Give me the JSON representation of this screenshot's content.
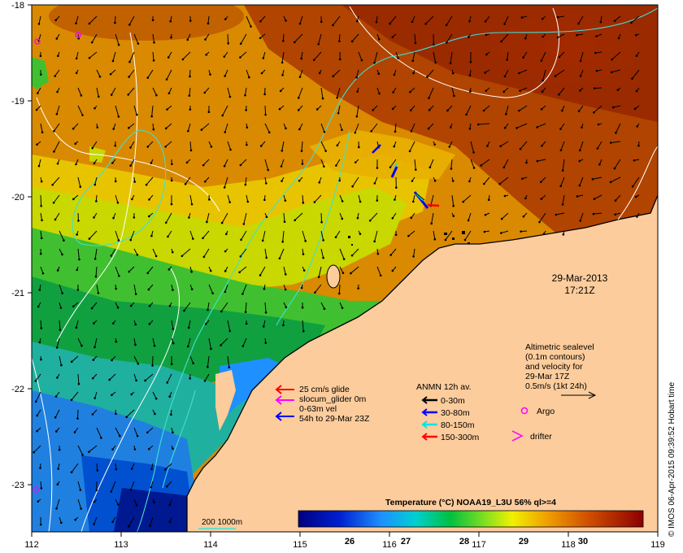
{
  "axes": {
    "y_ticks": [
      "-18",
      "-19",
      "-20",
      "-21",
      "-22",
      "-23"
    ],
    "x_ticks": [
      "112",
      "113",
      "114",
      "115",
      "116",
      "117",
      "118",
      "119"
    ]
  },
  "datestamp": {
    "date": "29-Mar-2013",
    "time": "17:21Z"
  },
  "altimetric": {
    "lines": [
      "Altimetric sealevel",
      "(0.1m contours)",
      "and velocity for",
      "29-Mar 17Z",
      "0.5m/s (1kt 24h)"
    ]
  },
  "glider_legend": {
    "lines": [
      "25 cm/s glide",
      "slocum_glider 0m",
      "0-63m vel",
      "54h to 29-Mar 23Z"
    ]
  },
  "anmn_legend": {
    "title": "ANMN 12h av.",
    "items": [
      {
        "label": "0-30m",
        "color": "#000000"
      },
      {
        "label": "30-80m",
        "color": "#0000ff"
      },
      {
        "label": "80-150m",
        "color": "#00e5e5"
      },
      {
        "label": "150-300m",
        "color": "#ff0000"
      }
    ]
  },
  "markers": {
    "argo": "Argo",
    "drifter": "drifter"
  },
  "colorbar": {
    "title": "Temperature (°C) NOAA19_L3U 56% ql>=4",
    "ticks": [
      "26",
      "27",
      "28",
      "29",
      "30"
    ]
  },
  "isobath": {
    "label": "200  1000m"
  },
  "credit": "© IMOS 06-Apr-2015 09:39:52 Hobart time",
  "colors": {
    "land": "#fccc9c",
    "isobath": "#40e0d0",
    "contour": "#ffffff"
  }
}
